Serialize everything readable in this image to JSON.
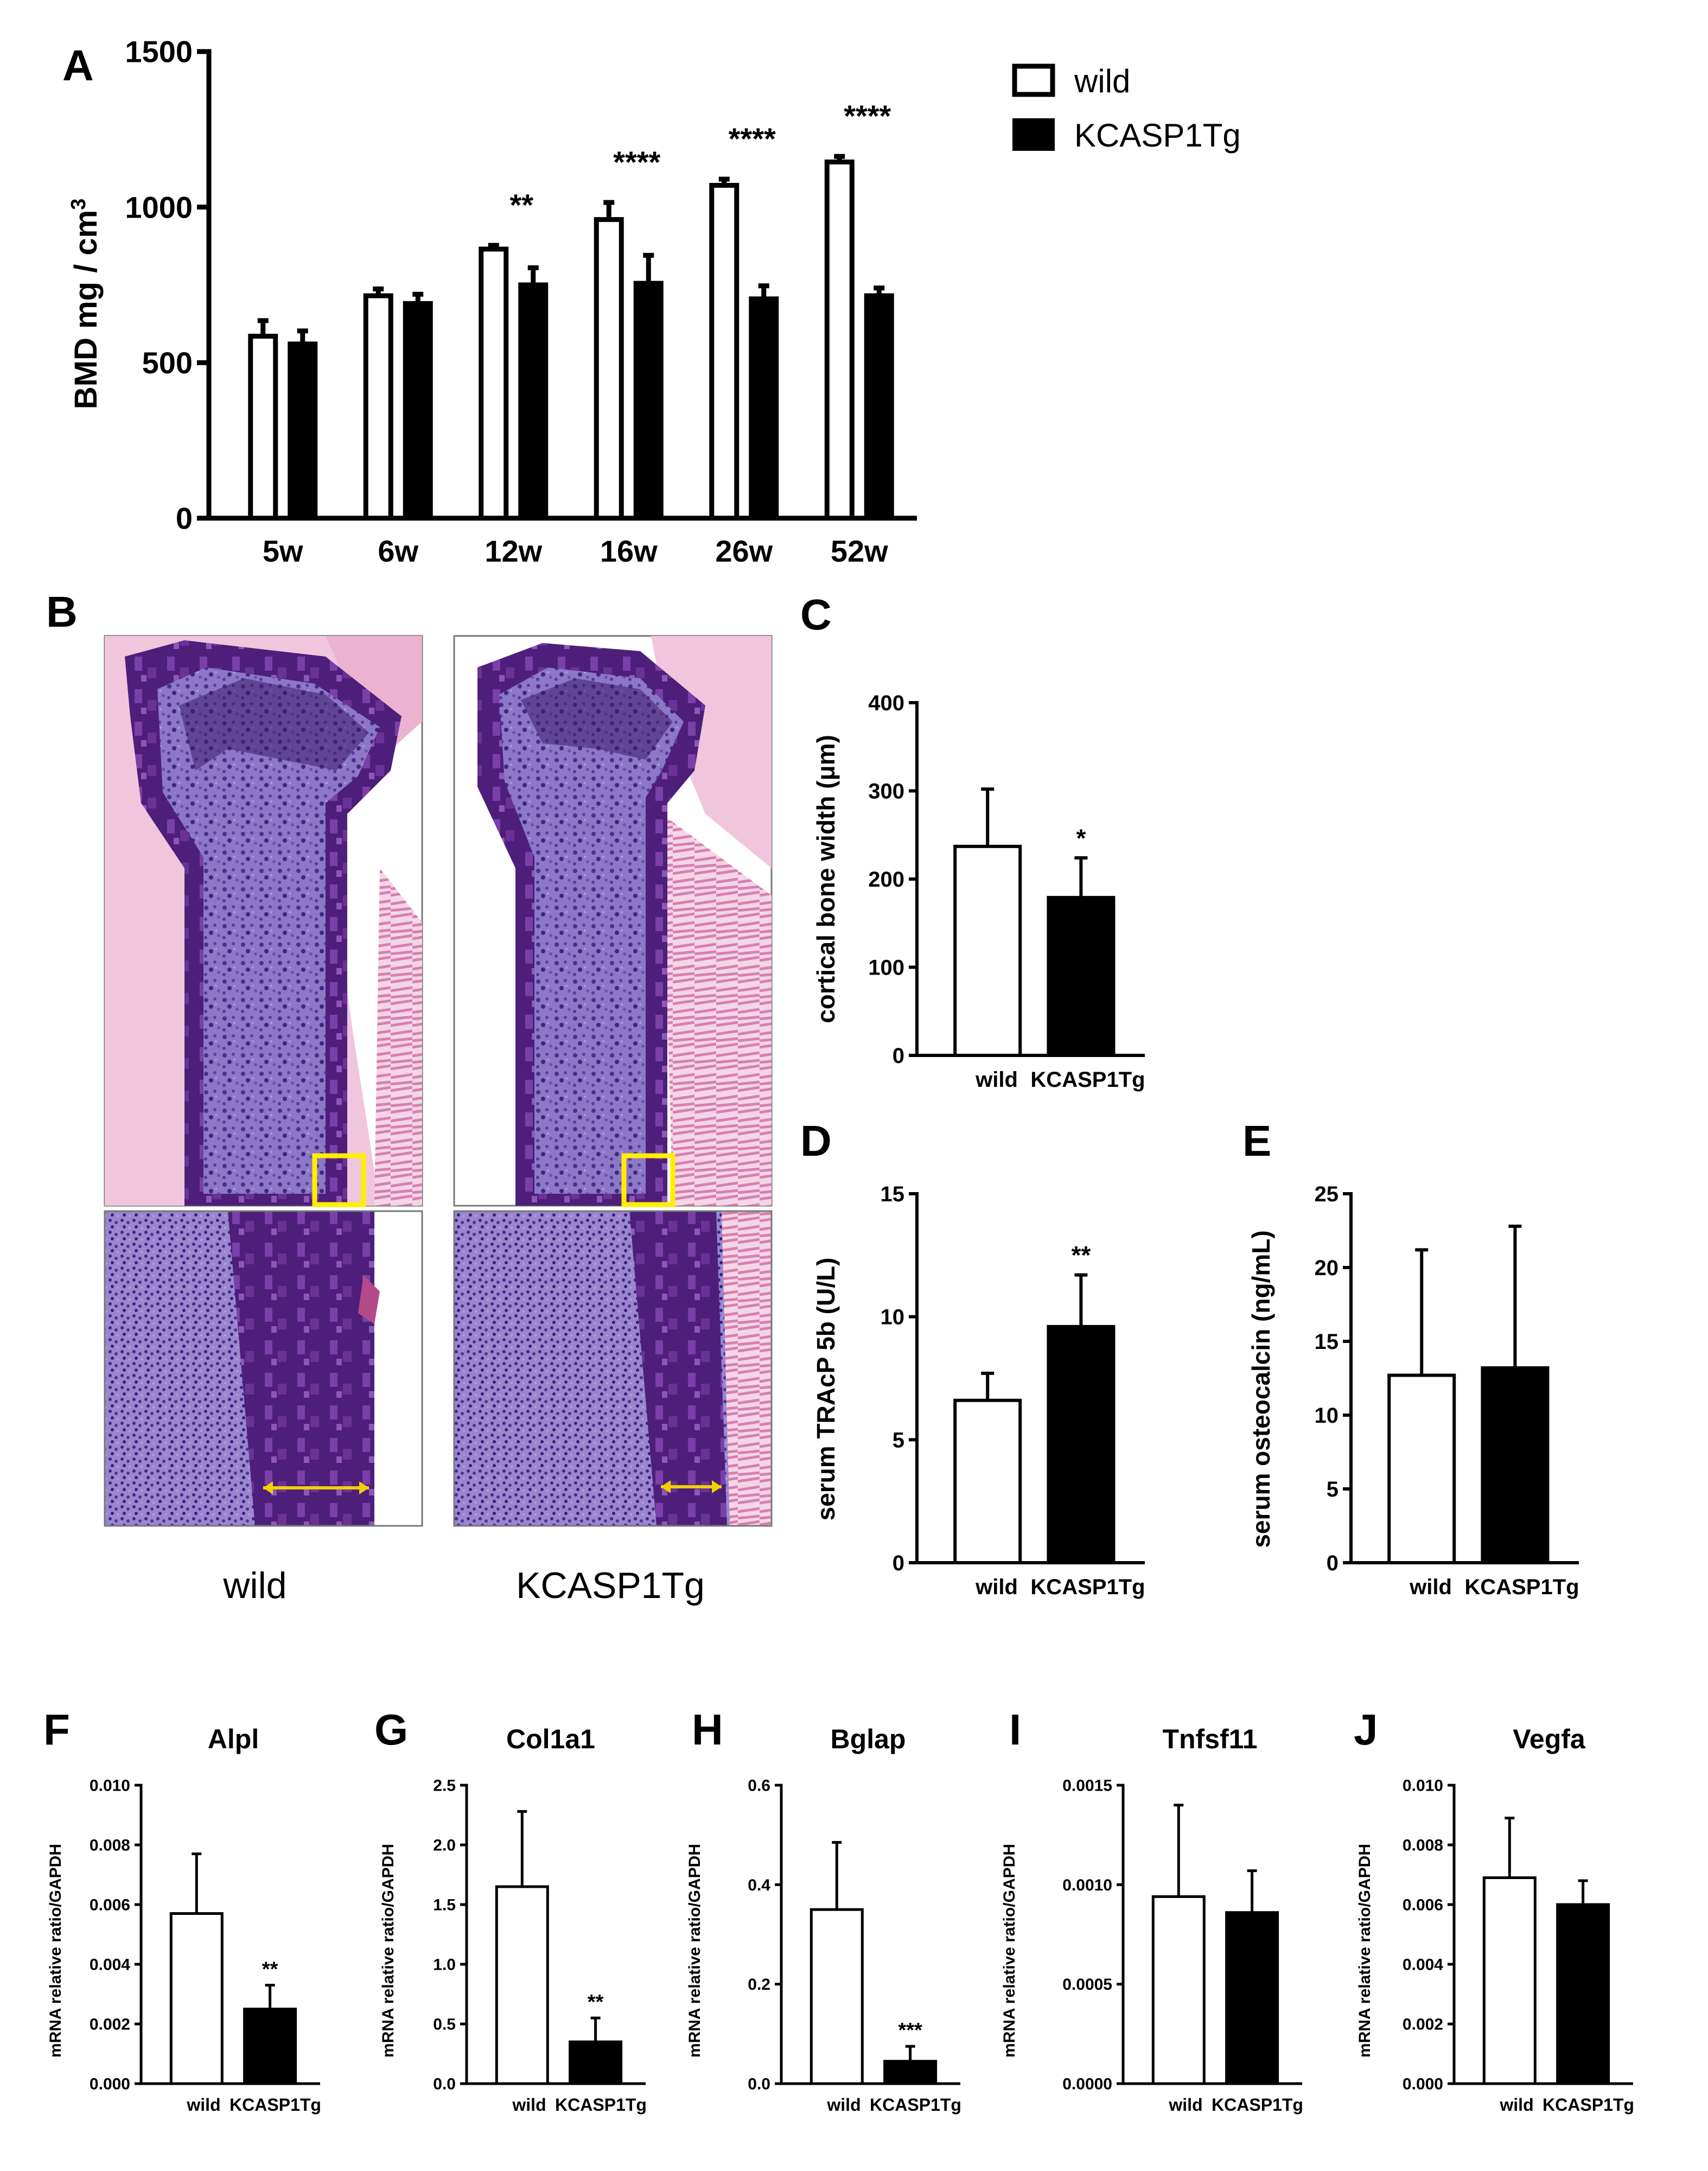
{
  "panel_letters": {
    "A": "A",
    "B": "B",
    "C": "C",
    "D": "D",
    "E": "E",
    "F": "F",
    "G": "G",
    "H": "H",
    "I": "I",
    "J": "J"
  },
  "legend": {
    "wild": "wild",
    "kcasp1tg": "KCASP1Tg"
  },
  "colors": {
    "wild": "#ffffff",
    "kcasp1tg": "#000000",
    "axis": "#000000",
    "highlight": "#ffee00",
    "arrow": "#f0d000"
  },
  "histology": {
    "labels": [
      "wild",
      "KCASP1Tg"
    ]
  },
  "chart_data": [
    {
      "id": "A",
      "type": "bar",
      "ylabel": "BMD mg / cm",
      "ylabel_sup": "3",
      "ylim": [
        0,
        1500
      ],
      "yticks": [
        "0",
        "500",
        "1000",
        "1500"
      ],
      "categories": [
        "5w",
        "6w",
        "12w",
        "16w",
        "26w",
        "52w"
      ],
      "series": [
        {
          "name": "wild",
          "values": [
            585,
            715,
            865,
            960,
            1070,
            1145
          ],
          "errors": [
            50,
            22,
            12,
            55,
            20,
            18
          ]
        },
        {
          "name": "KCASP1Tg",
          "values": [
            560,
            690,
            750,
            755,
            705,
            715
          ],
          "errors": [
            42,
            30,
            55,
            90,
            42,
            25
          ]
        }
      ],
      "significance": [
        "",
        "",
        "**",
        "****",
        "****",
        "****"
      ]
    },
    {
      "id": "C",
      "type": "bar",
      "ylabel": "cortical bone width (μm)",
      "ylim": [
        0,
        400
      ],
      "yticks": [
        "0",
        "100",
        "200",
        "300",
        "400"
      ],
      "categories": [
        "wild",
        "KCASP1Tg"
      ],
      "values": [
        237,
        179
      ],
      "errors": [
        65,
        45
      ],
      "significance": "*"
    },
    {
      "id": "D",
      "type": "bar",
      "ylabel": "serum TRAcP 5b (U/L)",
      "ylim": [
        0,
        15
      ],
      "yticks": [
        "0",
        "5",
        "10",
        "15"
      ],
      "categories": [
        "wild",
        "KCASP1Tg"
      ],
      "values": [
        6.6,
        9.6
      ],
      "errors": [
        1.1,
        2.1
      ],
      "significance": "**"
    },
    {
      "id": "E",
      "type": "bar",
      "ylabel": "serum osteocalcin (ng/mL)",
      "ylim": [
        0,
        25
      ],
      "yticks": [
        "0",
        "5",
        "10",
        "15",
        "20",
        "25"
      ],
      "categories": [
        "wild",
        "KCASP1Tg"
      ],
      "values": [
        12.7,
        13.2
      ],
      "errors": [
        8.5,
        9.6
      ],
      "significance": ""
    },
    {
      "id": "F",
      "type": "bar",
      "title": "Alpl",
      "ylabel": "mRNA relative ratio/GAPDH",
      "ylim": [
        0,
        0.01
      ],
      "yticks": [
        "0.000",
        "0.002",
        "0.004",
        "0.006",
        "0.008",
        "0.010"
      ],
      "categories": [
        "wild",
        "KCASP1Tg"
      ],
      "values": [
        0.0057,
        0.0025
      ],
      "errors": [
        0.002,
        0.0008
      ],
      "significance": "**"
    },
    {
      "id": "G",
      "type": "bar",
      "title": "Col1a1",
      "ylabel": "mRNA relative ratio/GAPDH",
      "ylim": [
        0,
        2.5
      ],
      "yticks": [
        "0.0",
        "0.5",
        "1.0",
        "1.5",
        "2.0",
        "2.5"
      ],
      "categories": [
        "wild",
        "KCASP1Tg"
      ],
      "values": [
        1.65,
        0.35
      ],
      "errors": [
        0.63,
        0.2
      ],
      "significance": "**"
    },
    {
      "id": "H",
      "type": "bar",
      "title": "Bglap",
      "ylabel": "mRNA relative ratio/GAPDH",
      "ylim": [
        0,
        0.6
      ],
      "yticks": [
        "0.0",
        "0.2",
        "0.4",
        "0.6"
      ],
      "categories": [
        "wild",
        "KCASP1Tg"
      ],
      "values": [
        0.35,
        0.045
      ],
      "errors": [
        0.135,
        0.03
      ],
      "significance": "***"
    },
    {
      "id": "I",
      "type": "bar",
      "title": "Tnfsf11",
      "ylabel": "mRNA relative ratio/GAPDH",
      "ylim": [
        0,
        0.0015
      ],
      "yticks": [
        "0.0000",
        "0.0005",
        "0.0010",
        "0.0015"
      ],
      "categories": [
        "wild",
        "KCASP1Tg"
      ],
      "values": [
        0.00094,
        0.00086
      ],
      "errors": [
        0.00046,
        0.00021
      ],
      "significance": ""
    },
    {
      "id": "J",
      "type": "bar",
      "title": "Vegfa",
      "ylabel": "mRNA relative ratio/GAPDH",
      "ylim": [
        0,
        0.01
      ],
      "yticks": [
        "0.000",
        "0.002",
        "0.004",
        "0.006",
        "0.008",
        "0.010"
      ],
      "categories": [
        "wild",
        "KCASP1Tg"
      ],
      "values": [
        0.0069,
        0.006
      ],
      "errors": [
        0.002,
        0.0008
      ],
      "significance": ""
    }
  ]
}
